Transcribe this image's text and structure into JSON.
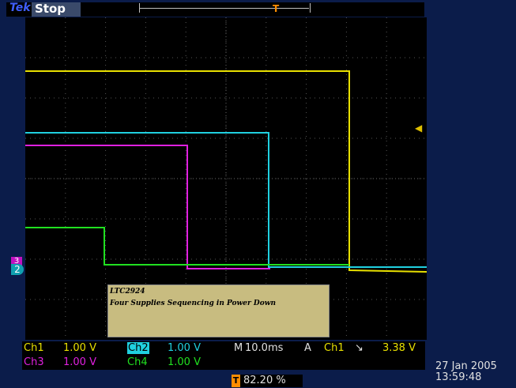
{
  "status": {
    "brand": "Tek",
    "state": "Stop"
  },
  "annotation": {
    "line1": "LTC2924",
    "line2": "Four Supplies Sequencing in Power Down"
  },
  "channels": [
    {
      "name": "Ch1",
      "scale": "1.00 V",
      "color": "#e8e000"
    },
    {
      "name": "Ch2",
      "scale": "1.00 V",
      "color": "#20d0e0"
    },
    {
      "name": "Ch3",
      "scale": "1.00 V",
      "color": "#e020e0"
    },
    {
      "name": "Ch4",
      "scale": "1.00 V",
      "color": "#20e020"
    }
  ],
  "timebase": {
    "prefix": "M",
    "value": "10.0ms"
  },
  "trigger": {
    "mode": "A",
    "source": "Ch1",
    "slope": "falling",
    "level": "3.38 V",
    "position": "82.20 %"
  },
  "markers": {
    "ch3": "3",
    "ch2": "2"
  },
  "datetime": {
    "date": "27 Jan  2005",
    "time": "13:59:48"
  },
  "colors": {
    "background": "#0b1c4a",
    "graticule": "#000000",
    "trigger": "#ff8c00"
  }
}
